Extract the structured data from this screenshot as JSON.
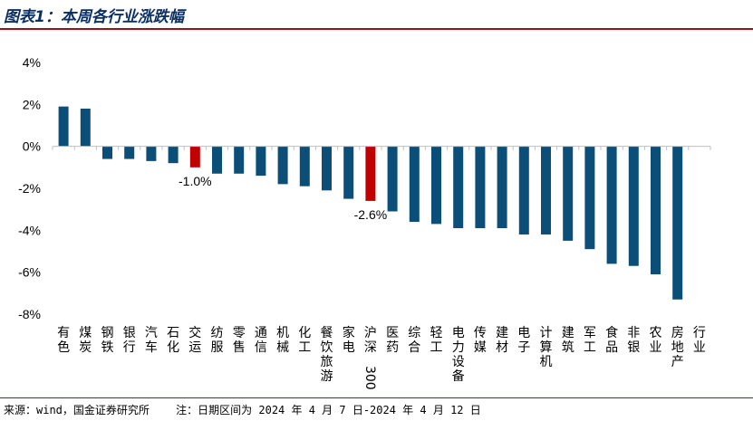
{
  "header": {
    "title": "图表1：本周各行业涨跌幅"
  },
  "footer": {
    "source": "来源：wind，国金证券研究所",
    "note": "注：日期区间为 2024 年 4 月 7 日-2024 年 4 月 12 日"
  },
  "colors": {
    "bar_default": "#0b4f79",
    "bar_highlight": "#c00000",
    "title": "#0b2f63",
    "rule": "#9c0f16"
  },
  "chart_data": {
    "type": "bar",
    "title": "",
    "xlabel": "",
    "ylabel": "",
    "ylim": [
      -8,
      4
    ],
    "yticks": [
      4,
      2,
      0,
      -2,
      -4,
      -6,
      -8
    ],
    "ytick_labels": [
      "4%",
      "2%",
      "0%",
      "-2%",
      "-4%",
      "-6%",
      "-8%"
    ],
    "categories": [
      "有色",
      "煤炭",
      "钢铁",
      "银行",
      "汽车",
      "石化",
      "交运",
      "纺服",
      "零售",
      "通信",
      "机械",
      "化工",
      "餐饮旅游",
      "家电",
      "沪深300",
      "医药",
      "综合",
      "轻工",
      "电力设备",
      "传媒",
      "建材",
      "电子",
      "计算机",
      "建筑",
      "军工",
      "食品",
      "非银",
      "农业",
      "房地产",
      "行业"
    ],
    "values": [
      1.9,
      1.8,
      -0.6,
      -0.6,
      -0.7,
      -0.8,
      -1.0,
      -1.3,
      -1.3,
      -1.4,
      -1.8,
      -1.9,
      -2.1,
      -2.5,
      -2.6,
      -3.1,
      -3.6,
      -3.7,
      -3.9,
      -3.9,
      -3.9,
      -4.2,
      -4.2,
      -4.5,
      -4.9,
      -5.6,
      -5.7,
      -6.1,
      -7.3,
      null
    ],
    "highlighted": [
      "交运",
      "沪深300"
    ],
    "data_labels": [
      {
        "category": "交运",
        "text": "-1.0%"
      },
      {
        "category": "沪深300",
        "text": "-2.6%"
      }
    ]
  }
}
